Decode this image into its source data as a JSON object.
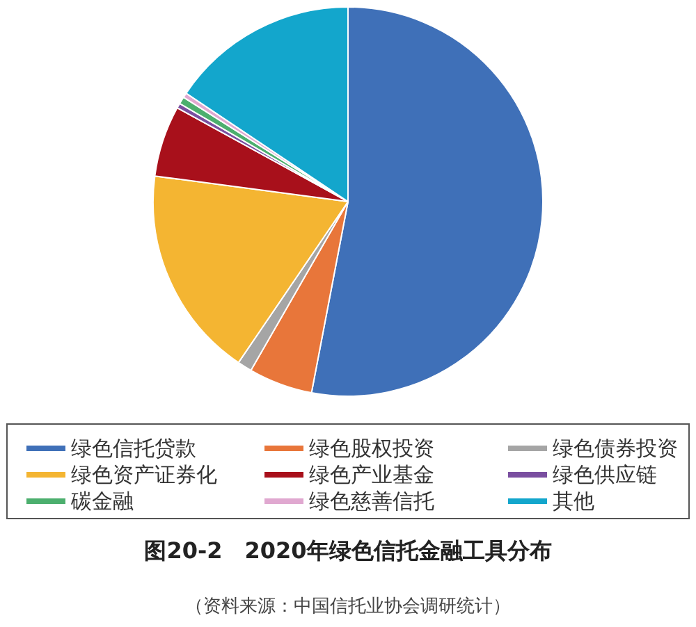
{
  "chart_data": {
    "type": "pie",
    "title": "图20-2　2020年绿色信托金融工具分布",
    "annotations": [
      "（资料来源：中国信托业协会调研统计）"
    ],
    "categories": [
      "绿色信托贷款",
      "绿色股权投资",
      "绿色债券投资",
      "绿色资产证券化",
      "绿色产业基金",
      "绿色供应链",
      "碳金融",
      "绿色慈善信托",
      "其他"
    ],
    "values": [
      53.0,
      5.3,
      1.2,
      17.6,
      5.9,
      0.4,
      0.6,
      0.4,
      15.6
    ],
    "colors": [
      "#3f70b8",
      "#e8763a",
      "#a5a5a5",
      "#f4b532",
      "#a8101b",
      "#7a4fa0",
      "#4caf6e",
      "#e0a8d0",
      "#13a6cc"
    ],
    "legend": "bottom"
  }
}
